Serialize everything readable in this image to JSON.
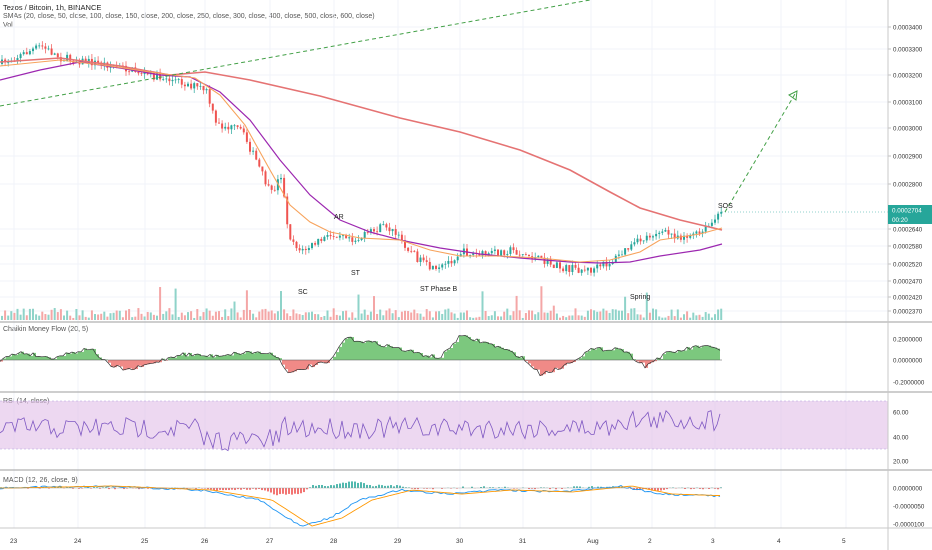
{
  "header": {
    "symbol": "Tezos / Bitcoin, 1h, BINANCE",
    "smas": "SMAs (20, close, 50, close, 100, close, 150, close, 200, close, 250, close, 300, close, 400, close, 500, close, 600, close)",
    "vol": "Vol"
  },
  "price_axis": {
    "labels": [
      "0.0003400",
      "0.0003300",
      "0.0003200",
      "0.0003100",
      "0.0003000",
      "0.0002900",
      "0.0002800",
      "0.0002640",
      "0.0002580",
      "0.0002520",
      "0.0002470",
      "0.0002420",
      "0.0002370"
    ],
    "current_price": "0.0002704",
    "countdown": "00:20",
    "current_color": "#26a69a"
  },
  "x_axis": {
    "labels": [
      "23",
      "24",
      "25",
      "26",
      "27",
      "28",
      "29",
      "30",
      "31",
      "Aug",
      "2",
      "3",
      "4",
      "5"
    ]
  },
  "annotations": [
    "SC",
    "AR",
    "ST",
    "ST Phase B",
    "Spring",
    "SOS"
  ],
  "panels": {
    "cmf": {
      "title": "Chaikin Money Flow (20, 5)",
      "labels": [
        "0.2000000",
        "0.0000000",
        "-0.2000000"
      ]
    },
    "rsi": {
      "title": "RSI (14, close)",
      "labels": [
        "60.00",
        "40.00",
        "20.00"
      ]
    },
    "macd": {
      "title": "MACD (12, 26, close, 9)",
      "labels": [
        "0.0000000",
        "-0.0000050",
        "-0.0000100"
      ]
    }
  },
  "colors": {
    "up": "#26a69a",
    "down": "#ef5350",
    "sma_fast": "#f7a35c",
    "sma_mid": "#9c27b0",
    "sma_slow": "#e57373",
    "cmf_pos": "#4caf50",
    "cmf_neg": "#ef5350",
    "rsi": "#7e57c2",
    "rsi_band": "#e1bee7",
    "macd": "#2196f3",
    "signal": "#ff9800"
  },
  "chart_data": {
    "type": "candlestick",
    "title": "Tezos / Bitcoin, 1h, BINANCE",
    "x": [
      "23",
      "24",
      "25",
      "26",
      "27",
      "28",
      "29",
      "30",
      "31",
      "Aug",
      "2",
      "3"
    ],
    "close_approx": [
      0.000322,
      0.00033,
      0.000321,
      0.000316,
      0.000262,
      0.000265,
      0.000257,
      0.000256,
      0.000252,
      0.000253,
      0.000264,
      0.0002704
    ],
    "events": [
      {
        "label": "SC",
        "x": "27",
        "price": 0.000242
      },
      {
        "label": "AR",
        "x": "28",
        "price": 0.000267
      },
      {
        "label": "ST",
        "x": "28",
        "price": 0.000251
      },
      {
        "label": "ST Phase B",
        "x": "29",
        "price": 0.000247
      },
      {
        "label": "Spring",
        "x": "2",
        "price": 0.000245
      },
      {
        "label": "SOS",
        "x": "3",
        "price": 0.000271
      }
    ],
    "ylim": [
      0.000236,
      0.000345
    ]
  }
}
